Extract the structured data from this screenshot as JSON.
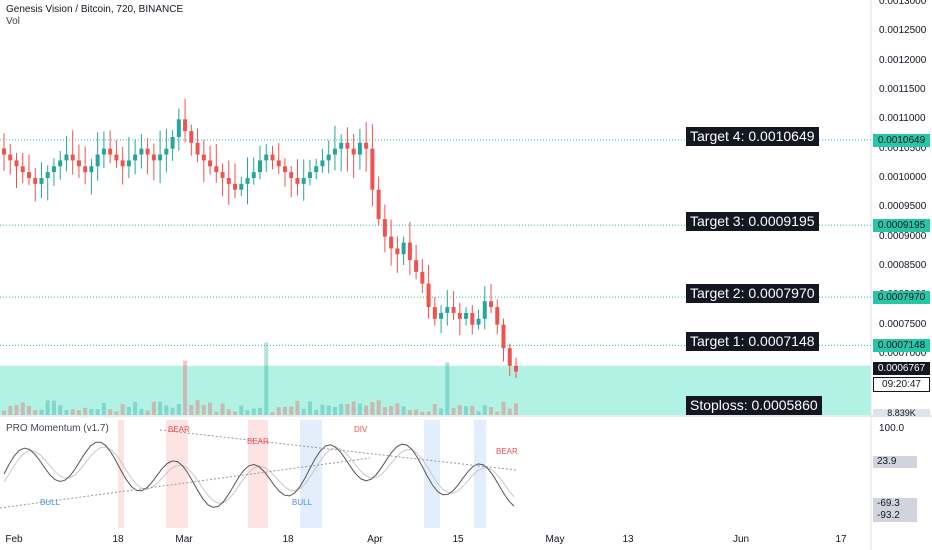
{
  "header": {
    "title": "Genesis Vision / Bitcoin, 720, BINANCE",
    "vol_label": "Vol",
    "indicator_label": "PRO Momentum (v1.7)"
  },
  "colors": {
    "up": "#26a69a",
    "down": "#ef5350",
    "target_line": "#26c6a6",
    "stop_zone": "#b2f2e5",
    "label_bg": "#131722"
  },
  "chart_data": {
    "type": "candlestick",
    "title": "Genesis Vision / Bitcoin, 720, BINANCE",
    "price_axis": {
      "ticks": [
        "0.0013000",
        "0.0012500",
        "0.0012000",
        "0.0011500",
        "0.0011000",
        "0.0010500",
        "0.0010000",
        "0.0009500",
        "0.0009000",
        "0.0008500",
        "0.0008000",
        "0.0007500",
        "0.0007000"
      ],
      "range": [
        0.00058,
        0.0013
      ]
    },
    "x_axis": {
      "ticks": [
        "Feb",
        "18",
        "Mar",
        "18",
        "Apr",
        "15",
        "May",
        "13",
        "Jun",
        "17"
      ]
    },
    "targets": [
      {
        "label": "Target 4: 0.0010649",
        "price": 0.0010649,
        "tag": "0.0010649"
      },
      {
        "label": "Target 3: 0.0009195",
        "price": 0.0009195,
        "tag": "0.0009195"
      },
      {
        "label": "Target 2: 0.0007970",
        "price": 0.000797,
        "tag": "0.0007970"
      },
      {
        "label": "Target 1: 0.0007148",
        "price": 0.0007148,
        "tag": "0.0007148"
      }
    ],
    "stoploss": {
      "label": "Stoploss: 0.0005860",
      "price": 0.000586
    },
    "last_price": {
      "value": "0.0006767",
      "countdown": "09:20:47",
      "volume": "8.839K"
    },
    "close_series": [
      0.00104,
      0.00103,
      0.00102,
      0.00101,
      0.001,
      0.00099,
      0.001,
      0.00101,
      0.00102,
      0.00103,
      0.00104,
      0.00103,
      0.00102,
      0.00101,
      0.00102,
      0.00104,
      0.00105,
      0.00104,
      0.00103,
      0.00102,
      0.00103,
      0.00104,
      0.00105,
      0.00104,
      0.00103,
      0.00104,
      0.00105,
      0.00107,
      0.0011,
      0.00108,
      0.00106,
      0.00104,
      0.00103,
      0.00102,
      0.00101,
      0.001,
      0.00099,
      0.00098,
      0.00099,
      0.001,
      0.00101,
      0.00103,
      0.00104,
      0.00103,
      0.00102,
      0.00101,
      0.001,
      0.00099,
      0.001,
      0.00101,
      0.00102,
      0.00103,
      0.00104,
      0.00105,
      0.00106,
      0.00105,
      0.00104,
      0.00106,
      0.00105,
      0.00098,
      0.00093,
      0.0009,
      0.00088,
      0.00087,
      0.00089,
      0.00086,
      0.00084,
      0.00082,
      0.00078,
      0.00076,
      0.00077,
      0.00078,
      0.00077,
      0.00076,
      0.00077,
      0.00075,
      0.00076,
      0.00079,
      0.00078,
      0.00075,
      0.00071,
      0.00068,
      0.00067
    ],
    "momentum": {
      "ticks": [
        "100.0"
      ],
      "tags": [
        "23.9",
        "-69.3",
        "-93.2"
      ],
      "signals": [
        {
          "text": "BEAR",
          "color": "#ef5350"
        },
        {
          "text": "BEAR",
          "color": "#ef5350"
        },
        {
          "text": "DIV",
          "color": "#ef5350"
        },
        {
          "text": "BEAR",
          "color": "#ef5350"
        },
        {
          "text": "BULL",
          "color": "#4a90e2"
        },
        {
          "text": "BULL",
          "color": "#4a90e2"
        }
      ]
    }
  }
}
